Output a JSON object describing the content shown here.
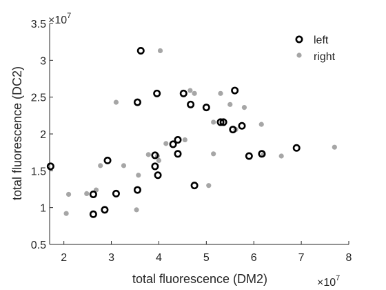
{
  "chart_data": {
    "type": "scatter",
    "xlabel": "total fluorescence (DM2)",
    "ylabel": "total fluorescence (DC2)",
    "x_multiplier_label": {
      "base": "×10",
      "exponent": "7"
    },
    "y_multiplier_label": {
      "base": "×10",
      "exponent": "7"
    },
    "xlim": [
      1.7,
      8
    ],
    "ylim": [
      0.5,
      3.5
    ],
    "x_ticks": [
      "2",
      "3",
      "4",
      "5",
      "6",
      "7",
      "8"
    ],
    "y_ticks": [
      "0.5",
      "1",
      "1.5",
      "2",
      "2.5",
      "3",
      "3.5"
    ],
    "grid": false,
    "legend_position": "top-right",
    "series": [
      {
        "name": "left",
        "marker": "open-circle",
        "color": "#000000",
        "points": [
          [
            1.72,
            1.56
          ],
          [
            2.62,
            1.18
          ],
          [
            2.62,
            0.91
          ],
          [
            2.86,
            0.97
          ],
          [
            2.92,
            1.64
          ],
          [
            3.1,
            1.19
          ],
          [
            3.55,
            2.43
          ],
          [
            3.55,
            1.24
          ],
          [
            3.62,
            3.13
          ],
          [
            3.92,
            1.71
          ],
          [
            3.92,
            1.56
          ],
          [
            3.96,
            2.55
          ],
          [
            3.98,
            1.44
          ],
          [
            4.3,
            1.86
          ],
          [
            4.4,
            1.92
          ],
          [
            4.4,
            1.73
          ],
          [
            4.52,
            2.55
          ],
          [
            4.67,
            2.4
          ],
          [
            4.75,
            1.3
          ],
          [
            5.0,
            2.36
          ],
          [
            5.3,
            2.16
          ],
          [
            5.36,
            2.16
          ],
          [
            5.56,
            2.06
          ],
          [
            5.6,
            2.59
          ],
          [
            5.75,
            2.11
          ],
          [
            5.9,
            1.7
          ],
          [
            6.17,
            1.73
          ],
          [
            6.9,
            1.81
          ]
        ]
      },
      {
        "name": "right",
        "marker": "filled-dot",
        "color": "#a6a6a6",
        "points": [
          [
            2.05,
            0.92
          ],
          [
            2.1,
            1.18
          ],
          [
            2.48,
            1.19
          ],
          [
            2.68,
            1.24
          ],
          [
            2.77,
            1.57
          ],
          [
            3.1,
            2.43
          ],
          [
            3.26,
            1.57
          ],
          [
            3.53,
            0.97
          ],
          [
            3.57,
            1.44
          ],
          [
            3.78,
            1.72
          ],
          [
            3.97,
            1.7
          ],
          [
            4.0,
            1.64
          ],
          [
            4.03,
            3.13
          ],
          [
            4.15,
            1.87
          ],
          [
            4.55,
            1.92
          ],
          [
            4.66,
            2.59
          ],
          [
            4.75,
            2.55
          ],
          [
            5.05,
            1.3
          ],
          [
            5.15,
            1.73
          ],
          [
            5.15,
            2.16
          ],
          [
            5.3,
            2.55
          ],
          [
            5.5,
            2.4
          ],
          [
            5.8,
            2.36
          ],
          [
            5.62,
            2.06
          ],
          [
            6.16,
            2.13
          ],
          [
            6.2,
            1.72
          ],
          [
            6.58,
            1.7
          ],
          [
            7.7,
            1.82
          ]
        ]
      }
    ]
  }
}
